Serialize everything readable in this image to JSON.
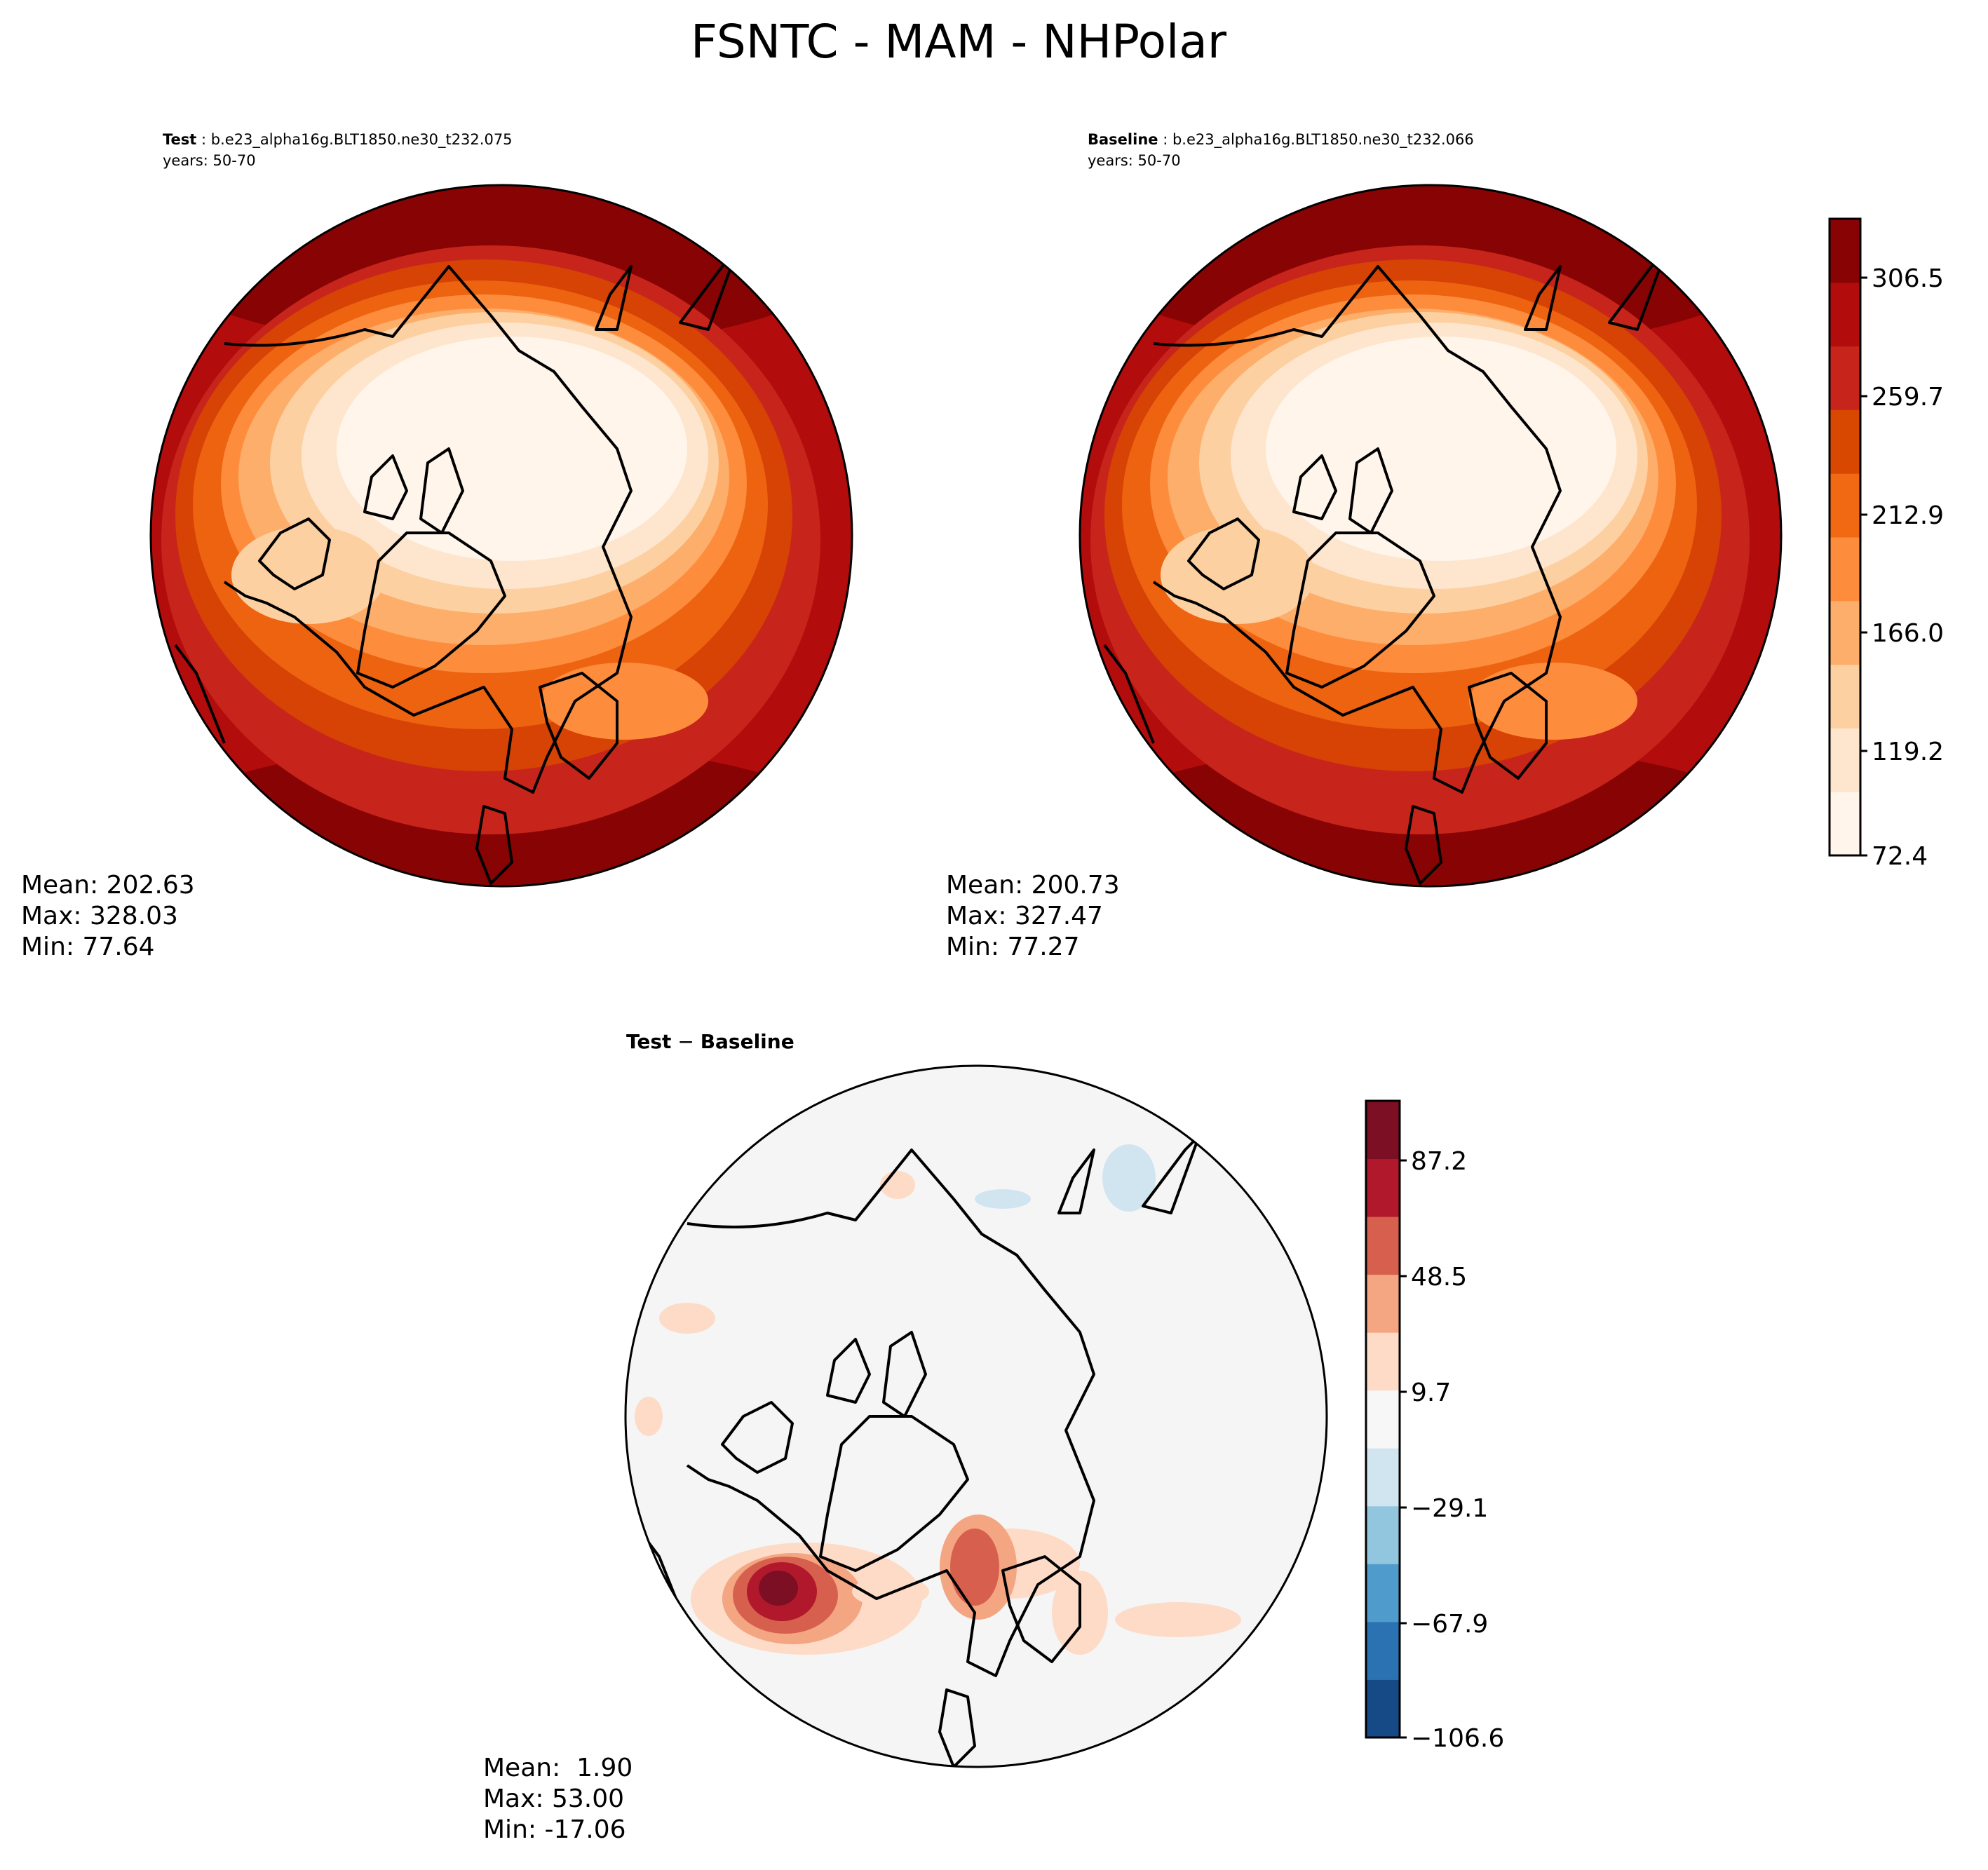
{
  "figure": {
    "title": "FSNTC - MAM - NHPolar"
  },
  "panels": {
    "test": {
      "label": "Test",
      "case": "b.e23_alpha16g.BLT1850.ne30_t232.075",
      "years": "years: 50-70",
      "stats": {
        "mean": "Mean: 202.63",
        "max": "Max: 328.03",
        "min": "Min: 77.64"
      }
    },
    "baseline": {
      "label": "Baseline",
      "case": "b.e23_alpha16g.BLT1850.ne30_t232.066",
      "years": "years: 50-70",
      "stats": {
        "mean": "Mean: 200.73",
        "max": "Max: 327.47",
        "min": "Min: 77.27"
      }
    },
    "diff": {
      "label_a": "Test",
      "label_sep": " − ",
      "label_b": "Baseline",
      "stats": {
        "mean": "Mean:  1.90",
        "max": "Max: 53.00",
        "min": "Min: -17.06"
      }
    }
  },
  "colorbars": {
    "main": {
      "ticks": [
        "306.5",
        "259.7",
        "212.9",
        "166.0",
        "119.2",
        "72.4"
      ],
      "colors": [
        "#fff5eb",
        "#fee6ce",
        "#fdd0a2",
        "#fdae6b",
        "#fd8d3c",
        "#f16913",
        "#d94801",
        "#c7251b",
        "#b30c0c",
        "#880303"
      ]
    },
    "diff": {
      "ticks": [
        "87.2",
        "48.5",
        "9.7",
        "−29.1",
        "−67.9",
        "−106.6"
      ],
      "colors": [
        "#154a86",
        "#2b72b3",
        "#4f9bcb",
        "#92c5de",
        "#d1e5f0",
        "#f7f7f7",
        "#fddbc7",
        "#f4a582",
        "#d6604d",
        "#b2182b",
        "#7d0f25"
      ]
    }
  },
  "legend_colors": {
    "continent_outline": "#000000",
    "diff_background": "#f5f5f5"
  }
}
